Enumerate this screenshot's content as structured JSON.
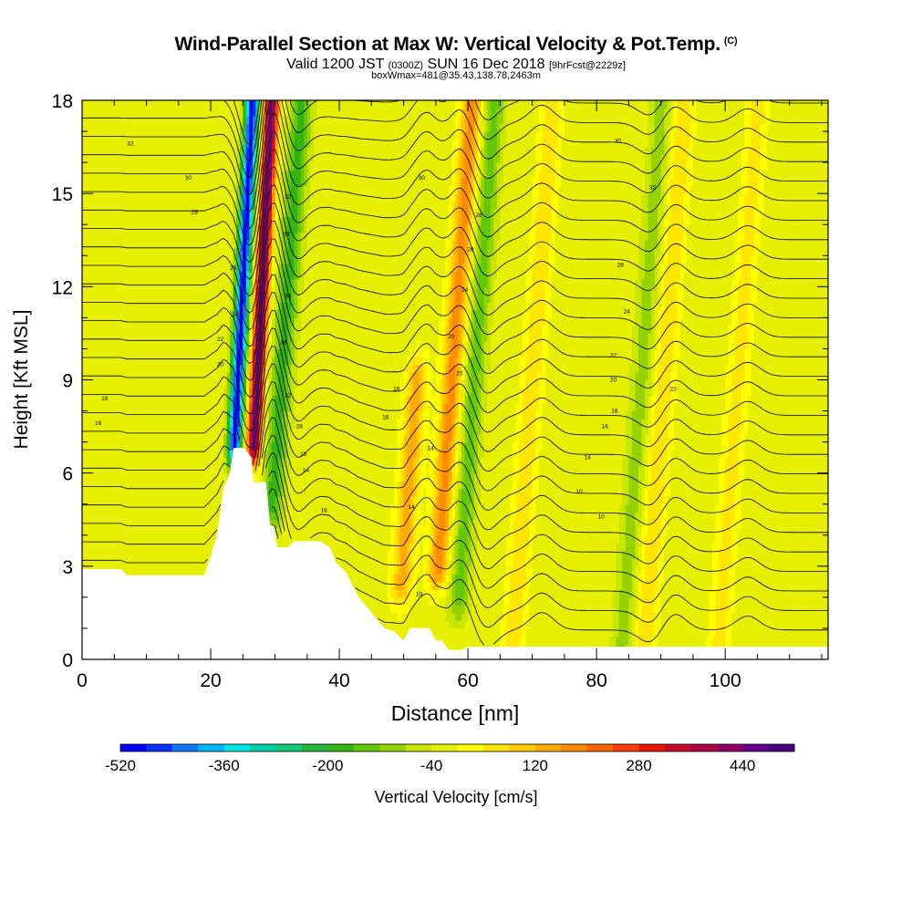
{
  "header": {
    "title": "Wind-Parallel Section at Max W: Vertical Velocity & Pot.Temp.",
    "copyright": "(C)",
    "valid_label": "Valid 1200 JST",
    "utc_label": "(0300Z)",
    "date_label": "SUN 16 Dec 2018",
    "forecast_label": "[9hrFcst@2229z]",
    "boxwmax_label": "boxWmax=481@35.43,138.78,2463m"
  },
  "chart_data": {
    "type": "heatmap",
    "title": "Wind-Parallel Section at Max W: Vertical Velocity & Pot.Temp.",
    "xlabel": "Distance [nm]",
    "ylabel": "Height [Kft MSL]",
    "xlim": [
      0,
      116
    ],
    "ylim": [
      0,
      18
    ],
    "x_ticks": [
      0,
      20,
      40,
      60,
      80,
      100
    ],
    "y_ticks": [
      0,
      3,
      6,
      9,
      12,
      15,
      18
    ],
    "colorbar": {
      "label": "Vertical Velocity [cm/s]",
      "min": -520,
      "max": 520,
      "step": 40,
      "tick_labels": [
        "-520",
        "-360",
        "-200",
        "-40",
        "120",
        "280",
        "440"
      ],
      "tick_values": [
        -520,
        -360,
        -200,
        -40,
        120,
        280,
        440
      ],
      "colors": [
        "#0000ff",
        "#0a32ff",
        "#1478ff",
        "#00b4ff",
        "#00e6e6",
        "#00d2aa",
        "#14c878",
        "#28b43c",
        "#32b414",
        "#64c80a",
        "#96d200",
        "#c8e600",
        "#e6f000",
        "#ffff00",
        "#ffe600",
        "#ffc800",
        "#ffaa00",
        "#ff8c00",
        "#ff6400",
        "#ff3c00",
        "#e61400",
        "#c80a28",
        "#aa0a46",
        "#8c0064",
        "#64008c",
        "#4b0082"
      ]
    },
    "velocity_features": [
      {
        "kind": "downdraft",
        "center_x": 25.0,
        "height_range": [
          7.0,
          18.0
        ],
        "min_value": -480
      },
      {
        "kind": "updraft",
        "center_x": 28.0,
        "height_range": [
          7.0,
          18.0
        ],
        "max_value": 481
      },
      {
        "kind": "downdraft",
        "center_x": 31.0,
        "height_range": [
          5.0,
          18.0
        ],
        "min_value": -160
      },
      {
        "kind": "updraft",
        "center_x": 52.0,
        "height_range": [
          2.5,
          9.0
        ],
        "max_value": 160
      },
      {
        "kind": "updraft",
        "center_x": 57.5,
        "height_range": [
          3.0,
          18.0
        ],
        "max_value": 200
      },
      {
        "kind": "downdraft",
        "center_x": 61.0,
        "height_range": [
          2.0,
          18.0
        ],
        "min_value": -120
      },
      {
        "kind": "updraft",
        "center_x": 70.0,
        "height_range": [
          0.5,
          18.0
        ],
        "max_value": 100
      },
      {
        "kind": "downdraft",
        "center_x": 87.0,
        "height_range": [
          0.5,
          18.0
        ],
        "min_value": -80
      },
      {
        "kind": "updraft",
        "center_x": 90.5,
        "height_range": [
          0.5,
          18.0
        ],
        "max_value": 100
      },
      {
        "kind": "updraft",
        "center_x": 102.0,
        "height_range": [
          0.5,
          18.0
        ],
        "max_value": 80
      }
    ],
    "terrain_profile": [
      [
        0,
        2.9
      ],
      [
        6,
        2.9
      ],
      [
        7,
        2.7
      ],
      [
        19,
        2.7
      ],
      [
        20,
        3.3
      ],
      [
        21,
        4.0
      ],
      [
        22,
        5.5
      ],
      [
        23,
        6.0
      ],
      [
        23.6,
        6.8
      ],
      [
        25.2,
        6.8
      ],
      [
        26.3,
        6.5
      ],
      [
        26.6,
        5.7
      ],
      [
        28.6,
        5.7
      ],
      [
        29.2,
        4.3
      ],
      [
        29.8,
        4.3
      ],
      [
        30.3,
        3.6
      ],
      [
        32,
        3.6
      ],
      [
        33,
        3.8
      ],
      [
        37,
        3.8
      ],
      [
        38.5,
        3.6
      ],
      [
        39.5,
        3.1
      ],
      [
        41,
        2.8
      ],
      [
        43,
        2.0
      ],
      [
        45,
        1.5
      ],
      [
        47,
        1.0
      ],
      [
        48.5,
        0.9
      ],
      [
        50,
        0.6
      ],
      [
        51,
        1.0
      ],
      [
        54,
        1.0
      ],
      [
        55,
        0.6
      ],
      [
        56,
        0.6
      ],
      [
        57,
        0.3
      ],
      [
        59,
        0.3
      ],
      [
        60,
        0.4
      ],
      [
        116,
        0.4
      ]
    ],
    "theta_contour_labels": [
      {
        "text": "16",
        "x": 2.5,
        "y": 7.6
      },
      {
        "text": "18",
        "x": 3.5,
        "y": 8.4
      },
      {
        "text": "20",
        "x": 21.5,
        "y": 9.5
      },
      {
        "text": "22",
        "x": 21.5,
        "y": 10.3
      },
      {
        "text": "24",
        "x": 23.8,
        "y": 11.1
      },
      {
        "text": "26",
        "x": 23.5,
        "y": 12.6
      },
      {
        "text": "28",
        "x": 17.5,
        "y": 14.4
      },
      {
        "text": "30",
        "x": 16.5,
        "y": 15.5
      },
      {
        "text": "32",
        "x": 7.5,
        "y": 16.6
      },
      {
        "text": "30",
        "x": 29.0,
        "y": 17.6
      },
      {
        "text": "32",
        "x": 32.0,
        "y": 14.9
      },
      {
        "text": "34",
        "x": 31.8,
        "y": 13.7
      },
      {
        "text": "34",
        "x": 32.0,
        "y": 11.7
      },
      {
        "text": "36",
        "x": 31.3,
        "y": 10.2
      },
      {
        "text": "32",
        "x": 32.0,
        "y": 8.5
      },
      {
        "text": "28",
        "x": 33.8,
        "y": 7.5
      },
      {
        "text": "16",
        "x": 34.4,
        "y": 6.6
      },
      {
        "text": "14",
        "x": 34.8,
        "y": 6.1
      },
      {
        "text": "16",
        "x": 37.6,
        "y": 4.8
      },
      {
        "text": "16",
        "x": 47.2,
        "y": 7.8
      },
      {
        "text": "16",
        "x": 48.9,
        "y": 8.7
      },
      {
        "text": "14",
        "x": 54.2,
        "y": 6.8
      },
      {
        "text": "14",
        "x": 51.2,
        "y": 4.9
      },
      {
        "text": "10",
        "x": 52.4,
        "y": 2.1
      },
      {
        "text": "30",
        "x": 52.8,
        "y": 15.5
      },
      {
        "text": "28",
        "x": 61.7,
        "y": 14.3
      },
      {
        "text": "28",
        "x": 60.4,
        "y": 13.2
      },
      {
        "text": "24",
        "x": 59.5,
        "y": 11.9
      },
      {
        "text": "20",
        "x": 57.4,
        "y": 10.4
      },
      {
        "text": "20",
        "x": 58.7,
        "y": 9.2
      },
      {
        "text": "14",
        "x": 78.6,
        "y": 6.5
      },
      {
        "text": "16",
        "x": 81.3,
        "y": 7.5
      },
      {
        "text": "18",
        "x": 82.8,
        "y": 8.0
      },
      {
        "text": "10",
        "x": 77.3,
        "y": 5.4
      },
      {
        "text": "10",
        "x": 80.7,
        "y": 4.6
      },
      {
        "text": "20",
        "x": 82.6,
        "y": 9.0
      },
      {
        "text": "22",
        "x": 91.9,
        "y": 8.7
      },
      {
        "text": "32",
        "x": 88.7,
        "y": 15.2
      },
      {
        "text": "30",
        "x": 83.3,
        "y": 16.7
      },
      {
        "text": "28",
        "x": 83.7,
        "y": 12.7
      },
      {
        "text": "24",
        "x": 84.7,
        "y": 11.2
      },
      {
        "text": "22",
        "x": 82.6,
        "y": 9.8
      }
    ]
  }
}
